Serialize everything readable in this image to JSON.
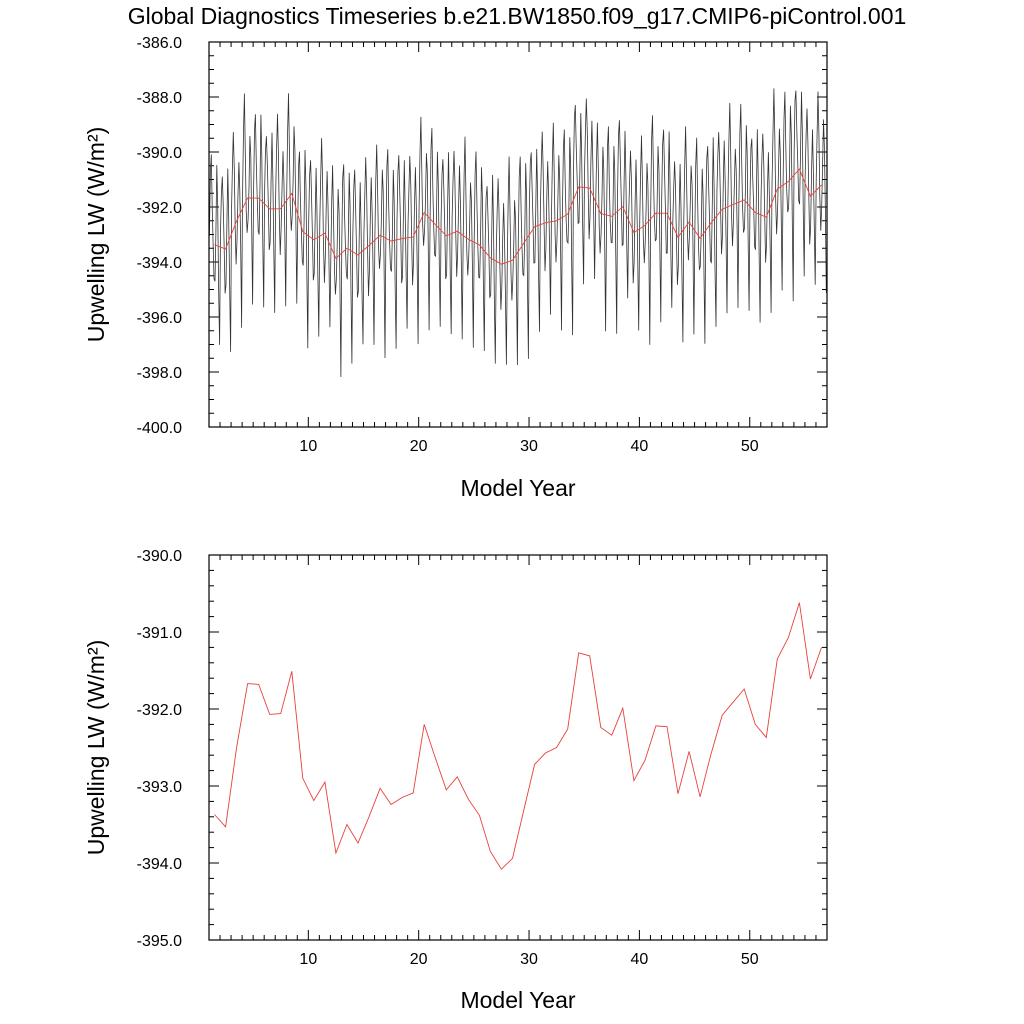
{
  "title": "Global Diagnostics Timeseries b.e21.BW1850.f09_g17.CMIP6-piControl.001",
  "colors": {
    "monthly": "#333333",
    "annual": "#e8413c",
    "axis": "#000000"
  },
  "chart_data": [
    {
      "type": "line",
      "xlabel": "Model Year",
      "ylabel": "Upwelling LW (W/m²)",
      "xlim": [
        1,
        57
      ],
      "ylim": [
        -400,
        -386
      ],
      "xticks": [
        10,
        20,
        30,
        40,
        50
      ],
      "xtick_labels": [
        "10",
        "20",
        "30",
        "40",
        "50"
      ],
      "yticks": [
        -400,
        -398,
        -396,
        -394,
        -392,
        -390,
        -388,
        -386
      ],
      "ytick_labels": [
        "-400.0",
        "-398.0",
        "-396.0",
        "-394.0",
        "-392.0",
        "-390.0",
        "-388.0",
        "-386.0"
      ],
      "monthly_series": {
        "start_year": 1.04,
        "step": 0.0833,
        "cycle_shape": [
          0.55,
          0.85,
          1.0,
          0.75,
          0.48,
          0.28,
          0.34,
          0.6,
          0.9,
          0.7,
          0.3,
          -0.1
        ],
        "annual_amplitude": 6.4
      },
      "series": [
        {
          "x": [
            1.5,
            2.5,
            3.5,
            4.5,
            5.5,
            6.5,
            7.5,
            8.5,
            9.5,
            10.5,
            11.5,
            12.5,
            13.5,
            14.5,
            15.5,
            16.5,
            17.5,
            18.5,
            19.5,
            20.5,
            21.5,
            22.5,
            23.5,
            24.5,
            25.5,
            26.5,
            27.5,
            28.5,
            29.5,
            30.5,
            31.5,
            32.5,
            33.5,
            34.5,
            35.5,
            36.5,
            37.5,
            38.5,
            39.5,
            40.5,
            41.5,
            42.5,
            43.5,
            44.5,
            45.5,
            46.5,
            47.5,
            48.5,
            49.5,
            50.5,
            51.5,
            52.5,
            53.5,
            54.5,
            55.5,
            56.5
          ],
          "values": [
            -393.37,
            -393.53,
            -392.5,
            -391.67,
            -391.68,
            -392.07,
            -392.06,
            -391.51,
            -392.9,
            -393.19,
            -392.95,
            -393.87,
            -393.5,
            -393.74,
            -393.4,
            -393.03,
            -393.24,
            -393.15,
            -393.09,
            -392.2,
            -392.63,
            -393.05,
            -392.88,
            -393.17,
            -393.38,
            -393.85,
            -394.08,
            -393.94,
            -393.33,
            -392.72,
            -392.57,
            -392.5,
            -392.26,
            -391.27,
            -391.31,
            -392.24,
            -392.34,
            -391.99,
            -392.93,
            -392.67,
            -392.22,
            -392.23,
            -393.1,
            -392.55,
            -393.14,
            -392.58,
            -392.08,
            -391.91,
            -391.74,
            -392.2,
            -392.37,
            -391.35,
            -391.07,
            -390.62,
            -391.61,
            -391.2
          ]
        }
      ]
    },
    {
      "type": "line",
      "xlabel": "Model Year",
      "ylabel": "Upwelling LW (W/m²)",
      "xlim": [
        1,
        57
      ],
      "ylim": [
        -395,
        -390
      ],
      "xticks": [
        10,
        20,
        30,
        40,
        50
      ],
      "xtick_labels": [
        "10",
        "20",
        "30",
        "40",
        "50"
      ],
      "yticks": [
        -395,
        -394,
        -393,
        -392,
        -391,
        -390
      ],
      "ytick_labels": [
        "-395.0",
        "-394.0",
        "-393.0",
        "-392.0",
        "-391.0",
        "-390.0"
      ],
      "series": [
        {
          "x": [
            1.5,
            2.5,
            3.5,
            4.5,
            5.5,
            6.5,
            7.5,
            8.5,
            9.5,
            10.5,
            11.5,
            12.5,
            13.5,
            14.5,
            15.5,
            16.5,
            17.5,
            18.5,
            19.5,
            20.5,
            21.5,
            22.5,
            23.5,
            24.5,
            25.5,
            26.5,
            27.5,
            28.5,
            29.5,
            30.5,
            31.5,
            32.5,
            33.5,
            34.5,
            35.5,
            36.5,
            37.5,
            38.5,
            39.5,
            40.5,
            41.5,
            42.5,
            43.5,
            44.5,
            45.5,
            46.5,
            47.5,
            48.5,
            49.5,
            50.5,
            51.5,
            52.5,
            53.5,
            54.5,
            55.5,
            56.5
          ],
          "values": [
            -393.37,
            -393.53,
            -392.5,
            -391.67,
            -391.68,
            -392.07,
            -392.06,
            -391.51,
            -392.9,
            -393.19,
            -392.95,
            -393.87,
            -393.5,
            -393.74,
            -393.4,
            -393.03,
            -393.24,
            -393.15,
            -393.09,
            -392.2,
            -392.63,
            -393.05,
            -392.88,
            -393.17,
            -393.38,
            -393.85,
            -394.08,
            -393.94,
            -393.33,
            -392.72,
            -392.57,
            -392.5,
            -392.26,
            -391.27,
            -391.31,
            -392.24,
            -392.34,
            -391.99,
            -392.93,
            -392.67,
            -392.22,
            -392.23,
            -393.1,
            -392.55,
            -393.14,
            -392.58,
            -392.08,
            -391.91,
            -391.74,
            -392.2,
            -392.37,
            -391.35,
            -391.07,
            -390.62,
            -391.61,
            -391.2
          ]
        }
      ]
    }
  ]
}
